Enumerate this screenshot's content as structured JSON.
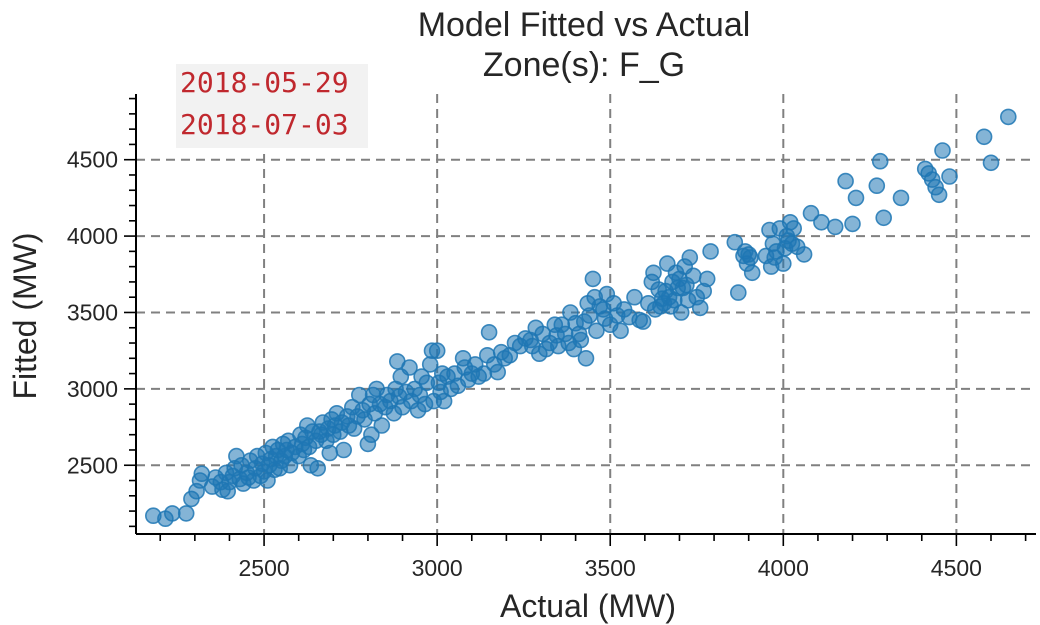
{
  "chart_data": {
    "type": "scatter",
    "title": "Model Fitted vs Actual",
    "subtitle": "Zone(s): F_G",
    "xlabel": "Actual (MW)",
    "ylabel": "Fitted (MW)",
    "xlim": [
      2130,
      4730
    ],
    "ylim": [
      2050,
      4930
    ],
    "x_ticks": [
      2500,
      3000,
      3500,
      4000,
      4500
    ],
    "y_ticks": [
      2500,
      3000,
      3500,
      4000,
      4500
    ],
    "grid": true,
    "point_color": "#1f77b4",
    "annotation": {
      "lines": [
        "2018-05-29",
        "2018-07-03"
      ],
      "color": "#c0282e",
      "background": "#f2f2f2"
    },
    "points": [
      [
        2180,
        2170
      ],
      [
        2215,
        2150
      ],
      [
        2235,
        2185
      ],
      [
        2275,
        2185
      ],
      [
        2290,
        2280
      ],
      [
        2305,
        2330
      ],
      [
        2315,
        2400
      ],
      [
        2320,
        2445
      ],
      [
        2350,
        2360
      ],
      [
        2360,
        2420
      ],
      [
        2375,
        2390
      ],
      [
        2380,
        2340
      ],
      [
        2390,
        2450
      ],
      [
        2395,
        2330
      ],
      [
        2400,
        2390
      ],
      [
        2410,
        2430
      ],
      [
        2415,
        2480
      ],
      [
        2420,
        2560
      ],
      [
        2430,
        2410
      ],
      [
        2435,
        2500
      ],
      [
        2440,
        2380
      ],
      [
        2450,
        2450
      ],
      [
        2455,
        2420
      ],
      [
        2460,
        2530
      ],
      [
        2470,
        2400
      ],
      [
        2475,
        2480
      ],
      [
        2480,
        2560
      ],
      [
        2490,
        2430
      ],
      [
        2495,
        2510
      ],
      [
        2500,
        2460
      ],
      [
        2505,
        2580
      ],
      [
        2510,
        2400
      ],
      [
        2515,
        2500
      ],
      [
        2520,
        2540
      ],
      [
        2525,
        2620
      ],
      [
        2530,
        2470
      ],
      [
        2535,
        2560
      ],
      [
        2540,
        2600
      ],
      [
        2545,
        2480
      ],
      [
        2550,
        2530
      ],
      [
        2555,
        2640
      ],
      [
        2560,
        2560
      ],
      [
        2565,
        2600
      ],
      [
        2570,
        2660
      ],
      [
        2575,
        2500
      ],
      [
        2580,
        2580
      ],
      [
        2590,
        2620
      ],
      [
        2600,
        2560
      ],
      [
        2605,
        2700
      ],
      [
        2610,
        2640
      ],
      [
        2615,
        2600
      ],
      [
        2620,
        2680
      ],
      [
        2625,
        2760
      ],
      [
        2630,
        2620
      ],
      [
        2635,
        2500
      ],
      [
        2640,
        2720
      ],
      [
        2650,
        2660
      ],
      [
        2655,
        2480
      ],
      [
        2660,
        2720
      ],
      [
        2665,
        2700
      ],
      [
        2670,
        2780
      ],
      [
        2680,
        2660
      ],
      [
        2685,
        2740
      ],
      [
        2690,
        2580
      ],
      [
        2695,
        2800
      ],
      [
        2700,
        2700
      ],
      [
        2705,
        2760
      ],
      [
        2710,
        2840
      ],
      [
        2720,
        2720
      ],
      [
        2725,
        2780
      ],
      [
        2730,
        2600
      ],
      [
        2740,
        2820
      ],
      [
        2745,
        2760
      ],
      [
        2755,
        2880
      ],
      [
        2760,
        2740
      ],
      [
        2770,
        2820
      ],
      [
        2775,
        2960
      ],
      [
        2785,
        2860
      ],
      [
        2790,
        2800
      ],
      [
        2800,
        2640
      ],
      [
        2805,
        2900
      ],
      [
        2810,
        2700
      ],
      [
        2815,
        2960
      ],
      [
        2820,
        2840
      ],
      [
        2825,
        3000
      ],
      [
        2835,
        2900
      ],
      [
        2840,
        2760
      ],
      [
        2850,
        2880
      ],
      [
        2855,
        2960
      ],
      [
        2865,
        2920
      ],
      [
        2875,
        2840
      ],
      [
        2880,
        3000
      ],
      [
        2885,
        3180
      ],
      [
        2890,
        2950
      ],
      [
        2895,
        3080
      ],
      [
        2900,
        2880
      ],
      [
        2910,
        2980
      ],
      [
        2920,
        3140
      ],
      [
        2925,
        2920
      ],
      [
        2935,
        3000
      ],
      [
        2945,
        2860
      ],
      [
        2950,
        2960
      ],
      [
        2955,
        3080
      ],
      [
        2965,
        2900
      ],
      [
        2970,
        3040
      ],
      [
        2980,
        3160
      ],
      [
        2985,
        3250
      ],
      [
        2990,
        2920
      ],
      [
        3000,
        3250
      ],
      [
        3005,
        3040
      ],
      [
        3010,
        2980
      ],
      [
        3015,
        3100
      ],
      [
        3020,
        2920
      ],
      [
        3030,
        3080
      ],
      [
        3040,
        3000
      ],
      [
        3050,
        3100
      ],
      [
        3060,
        3020
      ],
      [
        3075,
        3200
      ],
      [
        3080,
        3140
      ],
      [
        3090,
        3060
      ],
      [
        3100,
        3100
      ],
      [
        3110,
        3160
      ],
      [
        3120,
        3080
      ],
      [
        3135,
        3100
      ],
      [
        3145,
        3220
      ],
      [
        3150,
        3370
      ],
      [
        3165,
        3160
      ],
      [
        3175,
        3110
      ],
      [
        3185,
        3240
      ],
      [
        3195,
        3200
      ],
      [
        3210,
        3220
      ],
      [
        3225,
        3300
      ],
      [
        3240,
        3280
      ],
      [
        3255,
        3330
      ],
      [
        3270,
        3320
      ],
      [
        3275,
        3280
      ],
      [
        3285,
        3400
      ],
      [
        3295,
        3230
      ],
      [
        3305,
        3360
      ],
      [
        3315,
        3260
      ],
      [
        3325,
        3300
      ],
      [
        3340,
        3420
      ],
      [
        3345,
        3350
      ],
      [
        3350,
        3280
      ],
      [
        3360,
        3420
      ],
      [
        3370,
        3360
      ],
      [
        3380,
        3300
      ],
      [
        3385,
        3500
      ],
      [
        3395,
        3260
      ],
      [
        3400,
        3430
      ],
      [
        3410,
        3360
      ],
      [
        3415,
        3320
      ],
      [
        3425,
        3440
      ],
      [
        3430,
        3200
      ],
      [
        3435,
        3560
      ],
      [
        3440,
        3480
      ],
      [
        3450,
        3720
      ],
      [
        3455,
        3600
      ],
      [
        3460,
        3380
      ],
      [
        3470,
        3540
      ],
      [
        3480,
        3520
      ],
      [
        3485,
        3460
      ],
      [
        3490,
        3620
      ],
      [
        3500,
        3420
      ],
      [
        3510,
        3560
      ],
      [
        3520,
        3480
      ],
      [
        3530,
        3380
      ],
      [
        3540,
        3520
      ],
      [
        3555,
        3470
      ],
      [
        3570,
        3600
      ],
      [
        3585,
        3450
      ],
      [
        3595,
        3440
      ],
      [
        3610,
        3560
      ],
      [
        3620,
        3700
      ],
      [
        3625,
        3760
      ],
      [
        3630,
        3520
      ],
      [
        3640,
        3650
      ],
      [
        3645,
        3540
      ],
      [
        3650,
        3590
      ],
      [
        3655,
        3560
      ],
      [
        3660,
        3640
      ],
      [
        3665,
        3820
      ],
      [
        3670,
        3600
      ],
      [
        3675,
        3540
      ],
      [
        3680,
        3700
      ],
      [
        3685,
        3580
      ],
      [
        3690,
        3760
      ],
      [
        3695,
        3660
      ],
      [
        3700,
        3720
      ],
      [
        3705,
        3500
      ],
      [
        3710,
        3660
      ],
      [
        3715,
        3800
      ],
      [
        3720,
        3680
      ],
      [
        3725,
        3580
      ],
      [
        3730,
        3860
      ],
      [
        3740,
        3740
      ],
      [
        3750,
        3600
      ],
      [
        3760,
        3530
      ],
      [
        3770,
        3640
      ],
      [
        3780,
        3720
      ],
      [
        3790,
        3900
      ],
      [
        3860,
        3960
      ],
      [
        3870,
        3630
      ],
      [
        3885,
        3870
      ],
      [
        3890,
        3900
      ],
      [
        3895,
        3820
      ],
      [
        3900,
        3880
      ],
      [
        3905,
        3860
      ],
      [
        3910,
        3760
      ],
      [
        3950,
        3870
      ],
      [
        3960,
        4040
      ],
      [
        3965,
        3800
      ],
      [
        3970,
        3950
      ],
      [
        3975,
        3860
      ],
      [
        3980,
        3900
      ],
      [
        3990,
        4050
      ],
      [
        4000,
        3820
      ],
      [
        4005,
        3920
      ],
      [
        4010,
        4000
      ],
      [
        4015,
        3970
      ],
      [
        4020,
        4090
      ],
      [
        4025,
        3950
      ],
      [
        4030,
        4050
      ],
      [
        4040,
        3930
      ],
      [
        4060,
        3880
      ],
      [
        4080,
        4150
      ],
      [
        4110,
        4090
      ],
      [
        4150,
        4060
      ],
      [
        4180,
        4360
      ],
      [
        4200,
        4080
      ],
      [
        4210,
        4250
      ],
      [
        4270,
        4330
      ],
      [
        4280,
        4490
      ],
      [
        4290,
        4120
      ],
      [
        4340,
        4250
      ],
      [
        4410,
        4440
      ],
      [
        4420,
        4410
      ],
      [
        4430,
        4370
      ],
      [
        4440,
        4320
      ],
      [
        4450,
        4270
      ],
      [
        4460,
        4560
      ],
      [
        4480,
        4390
      ],
      [
        4580,
        4650
      ],
      [
        4600,
        4480
      ],
      [
        4650,
        4780
      ]
    ]
  }
}
